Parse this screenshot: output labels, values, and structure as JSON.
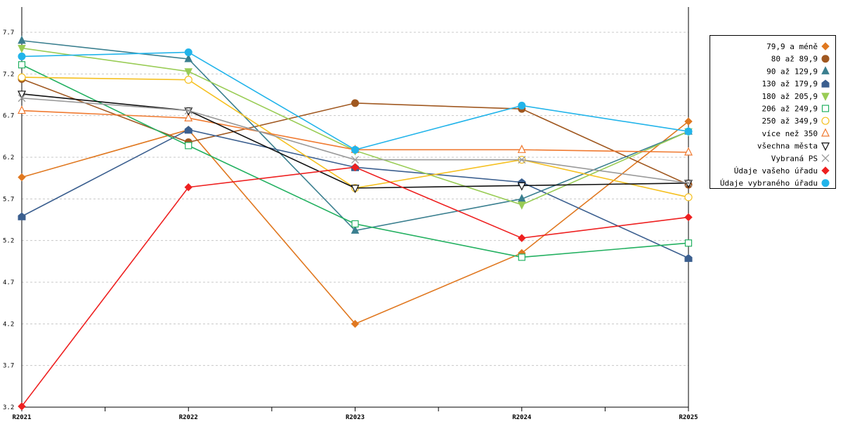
{
  "chart_data": {
    "type": "line",
    "title": "",
    "xlabel": "",
    "ylabel": "",
    "categories": [
      "R2021",
      "R2022",
      "R2023",
      "R2024",
      "R2025"
    ],
    "ylim": [
      3.2,
      7.7
    ],
    "yticks": [
      "3.2",
      "3.7",
      "4.2",
      "4.7",
      "5.2",
      "5.7",
      "6.2",
      "6.7",
      "7.2",
      "7.7"
    ],
    "grid": true,
    "legend_position": "right",
    "series": [
      {
        "name": "79,9 a méně",
        "color": "#e07820",
        "marker": "diamond",
        "values": [
          5.96,
          6.53,
          4.2,
          5.05,
          6.63
        ]
      },
      {
        "name": "80 až 89,9",
        "color": "#a05820",
        "marker": "circle",
        "values": [
          7.14,
          6.38,
          6.85,
          6.78,
          5.87
        ]
      },
      {
        "name": "90 až 129,9",
        "color": "#3a7f8f",
        "marker": "triangle",
        "values": [
          7.6,
          7.38,
          5.32,
          5.7,
          6.51
        ]
      },
      {
        "name": "130 až 179,9",
        "color": "#3b5f8f",
        "marker": "house",
        "values": [
          5.49,
          6.53,
          6.08,
          5.9,
          4.99
        ]
      },
      {
        "name": "180 až 205,9",
        "color": "#99cc55",
        "marker": "triangle-down",
        "values": [
          7.51,
          7.23,
          6.28,
          5.63,
          6.51
        ]
      },
      {
        "name": "206 až 249,9",
        "color": "#22b060",
        "marker": "square",
        "values": [
          7.31,
          6.34,
          5.4,
          5.0,
          5.17
        ]
      },
      {
        "name": "250 až 349,9",
        "color": "#f5c020",
        "marker": "circle-open",
        "values": [
          7.16,
          7.13,
          5.83,
          6.17,
          5.72
        ]
      },
      {
        "name": "více než 350",
        "color": "#f07a30",
        "marker": "triangle-open",
        "values": [
          6.76,
          6.67,
          6.29,
          6.29,
          6.26
        ]
      },
      {
        "name": "všechna města",
        "color": "#111111",
        "marker": "triangle-down-open",
        "values": [
          6.96,
          6.76,
          5.83,
          5.86,
          5.89
        ]
      },
      {
        "name": "Vybraná PS",
        "color": "#999999",
        "marker": "cross",
        "values": [
          6.91,
          6.76,
          6.17,
          6.17,
          5.89
        ]
      },
      {
        "name": "Údaje vašeho úřadu",
        "color": "#ee2020",
        "marker": "diamond",
        "values": [
          3.21,
          5.84,
          6.08,
          5.23,
          5.48
        ]
      },
      {
        "name": "Údaje vybraného úřadu",
        "color": "#22b4ea",
        "marker": "circle",
        "values": [
          7.41,
          7.46,
          6.29,
          6.82,
          6.51
        ]
      }
    ]
  }
}
